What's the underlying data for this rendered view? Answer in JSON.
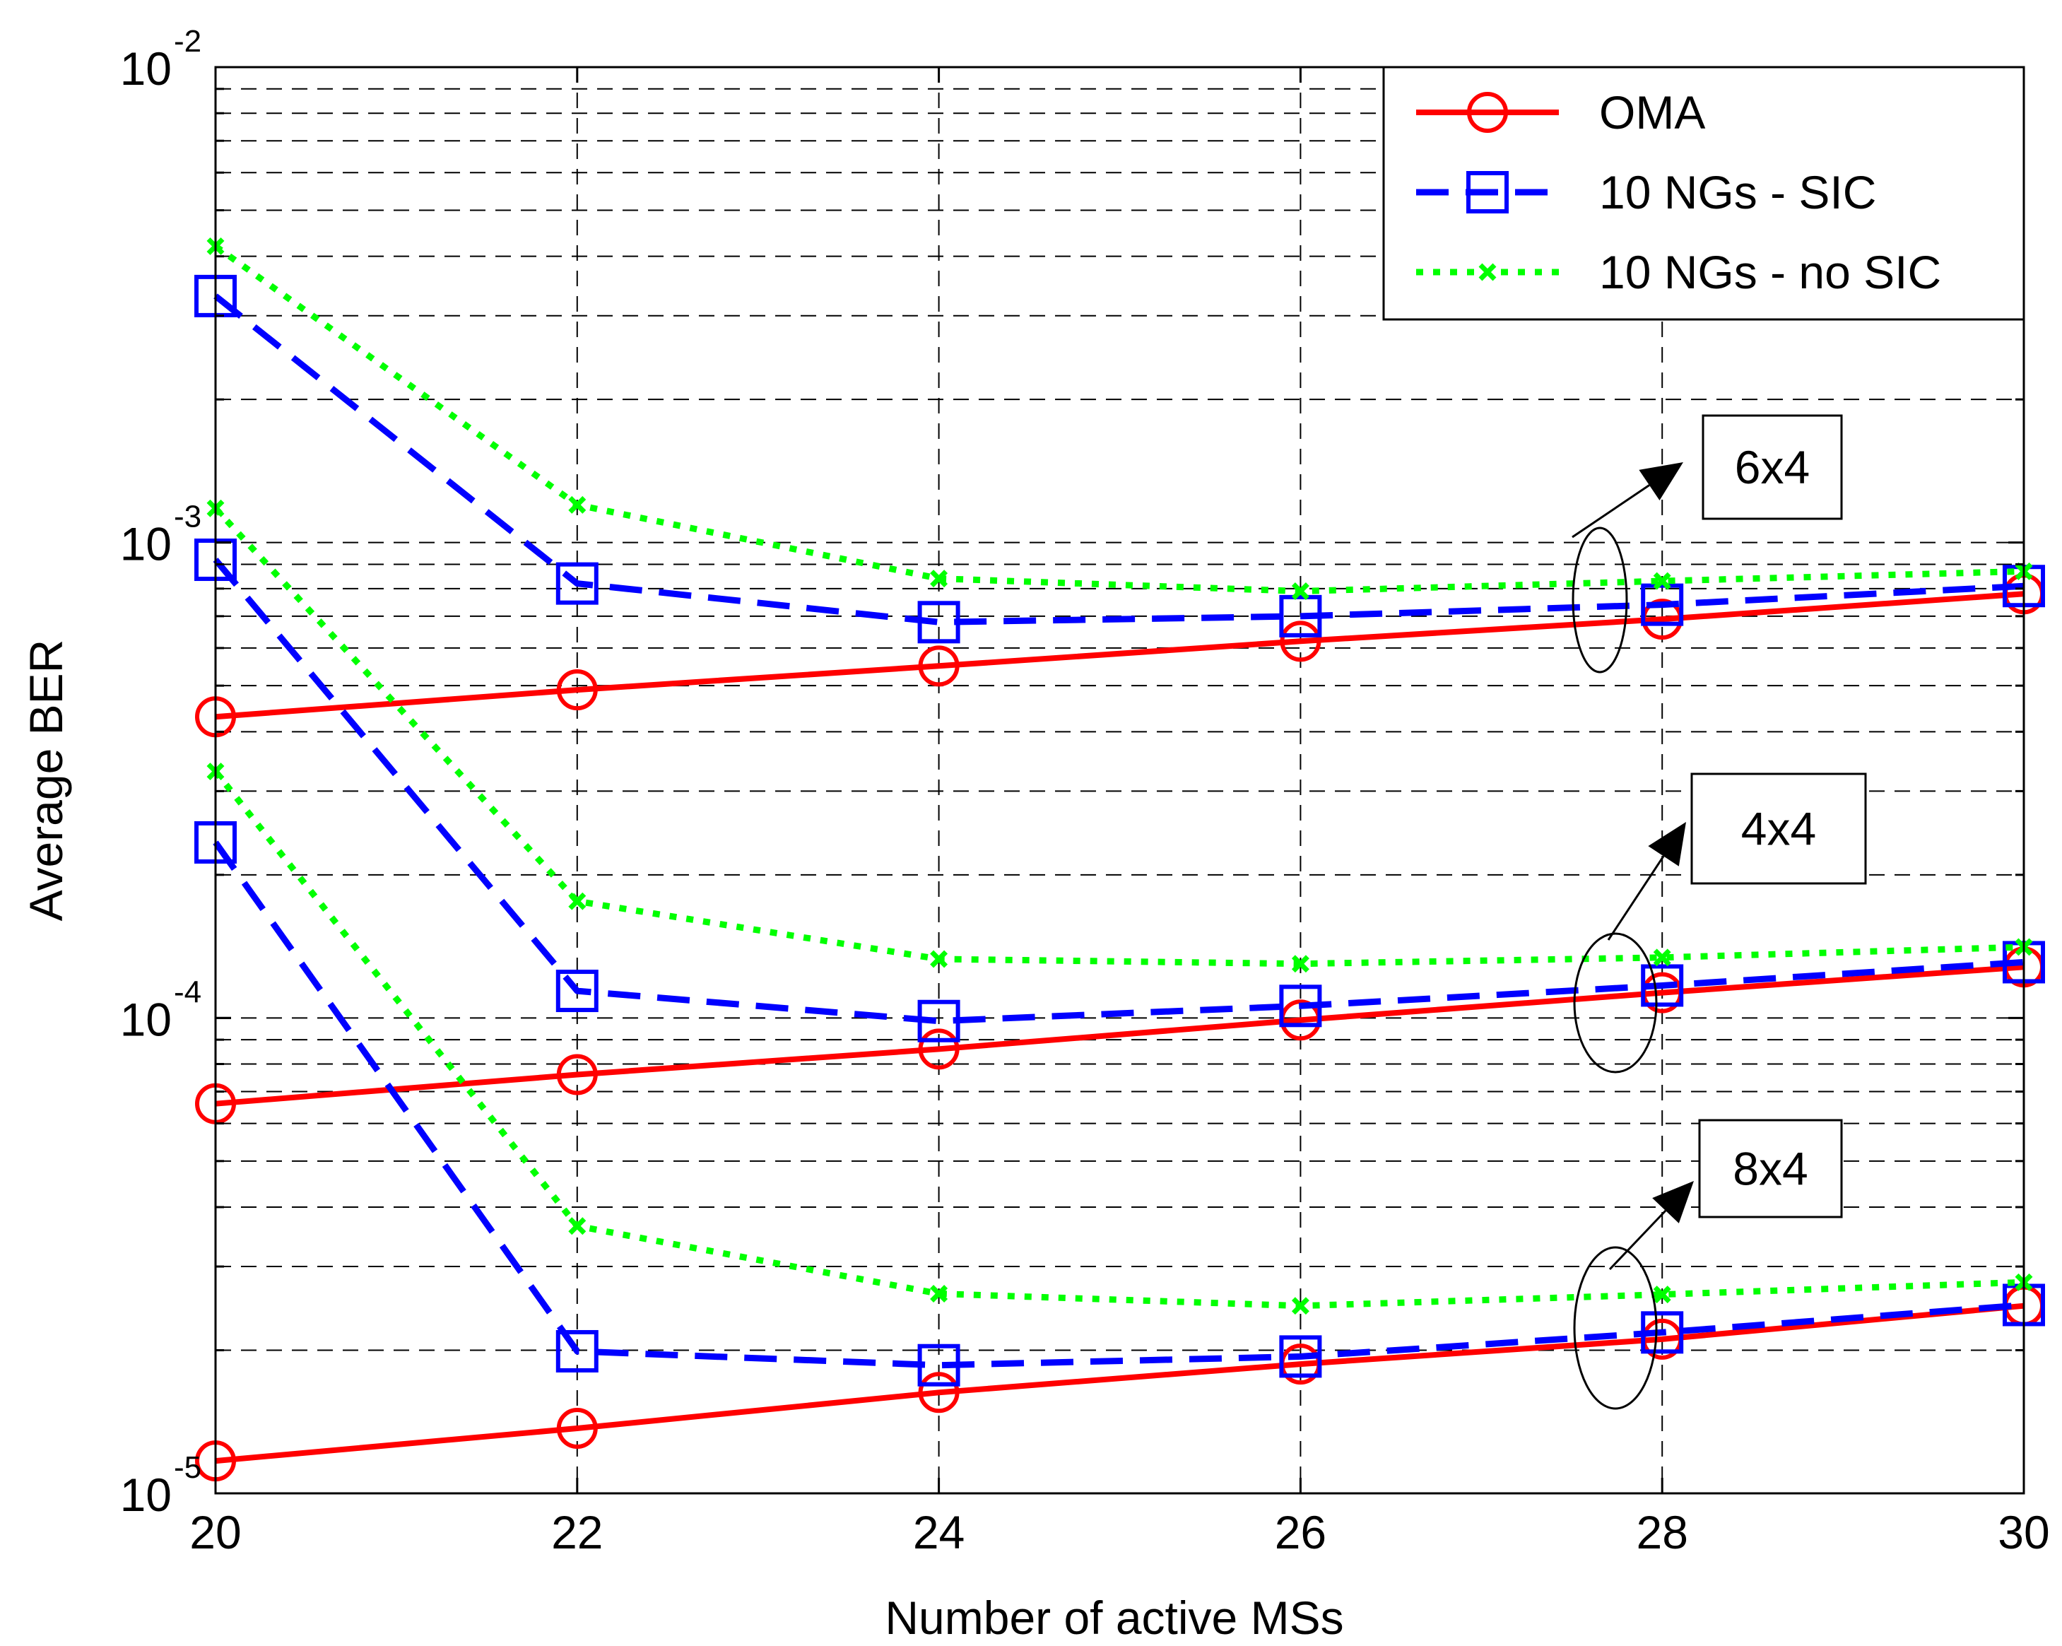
{
  "chart_data": {
    "type": "line",
    "title": "",
    "xlabel": "Number of active MSs",
    "ylabel": "Average BER",
    "yscale": "log",
    "xlim": [
      20,
      30
    ],
    "ylim": [
      1e-05,
      0.01
    ],
    "grid": true,
    "x_ticks": [
      "20",
      "22",
      "24",
      "26",
      "28",
      "30"
    ],
    "y_ticks": [
      {
        "base": "10",
        "exp": "-5"
      },
      {
        "base": "10",
        "exp": "-4"
      },
      {
        "base": "10",
        "exp": "-3"
      },
      {
        "base": "10",
        "exp": "-2"
      }
    ],
    "x": [
      20,
      22,
      24,
      26,
      28,
      30
    ],
    "legend": {
      "position": "top-right",
      "entries": [
        {
          "name": "OMA",
          "color": "#ff0000",
          "dash": "solid",
          "marker": "circle"
        },
        {
          "name": "10 NGs - SIC",
          "color": "#0000ff",
          "dash": "dashed",
          "marker": "square"
        },
        {
          "name": "10 NGs - no SIC",
          "color": "#00ff00",
          "dash": "dotted",
          "marker": "x"
        }
      ]
    },
    "groups": [
      {
        "label": "6x4",
        "series": [
          {
            "name": "OMA",
            "values": [
              0.00043,
              0.00049,
              0.00055,
              0.00062,
              0.00069,
              0.00078
            ]
          },
          {
            "name": "10 NGs - SIC",
            "values": [
              0.0033,
              0.00082,
              0.00068,
              0.0007,
              0.00074,
              0.00081
            ]
          },
          {
            "name": "10 NGs - no SIC",
            "values": [
              0.0042,
              0.0012,
              0.00084,
              0.00079,
              0.00083,
              0.00087
            ]
          }
        ]
      },
      {
        "label": "4x4",
        "series": [
          {
            "name": "OMA",
            "values": [
              6.6e-05,
              7.6e-05,
              8.6e-05,
              9.9e-05,
              0.000113,
              0.000128
            ]
          },
          {
            "name": "10 NGs - SIC",
            "values": [
              0.00092,
              0.000114,
              9.85e-05,
              0.000106,
              0.000117,
              0.000131
            ]
          },
          {
            "name": "10 NGs - no SIC",
            "values": [
              0.00118,
              0.000176,
              0.000133,
              0.00013,
              0.000134,
              0.000141
            ]
          }
        ]
      },
      {
        "label": "8x4",
        "series": [
          {
            "name": "OMA",
            "values": [
              1.17e-05,
              1.37e-05,
              1.63e-05,
              1.87e-05,
              2.11e-05,
              2.48e-05
            ]
          },
          {
            "name": "10 NGs - SIC",
            "values": [
              0.000234,
              1.99e-05,
              1.86e-05,
              1.94e-05,
              2.18e-05,
              2.49e-05
            ]
          },
          {
            "name": "10 NGs - no SIC",
            "values": [
              0.00033,
              3.65e-05,
              2.63e-05,
              2.48e-05,
              2.62e-05,
              2.78e-05
            ]
          }
        ]
      }
    ]
  }
}
